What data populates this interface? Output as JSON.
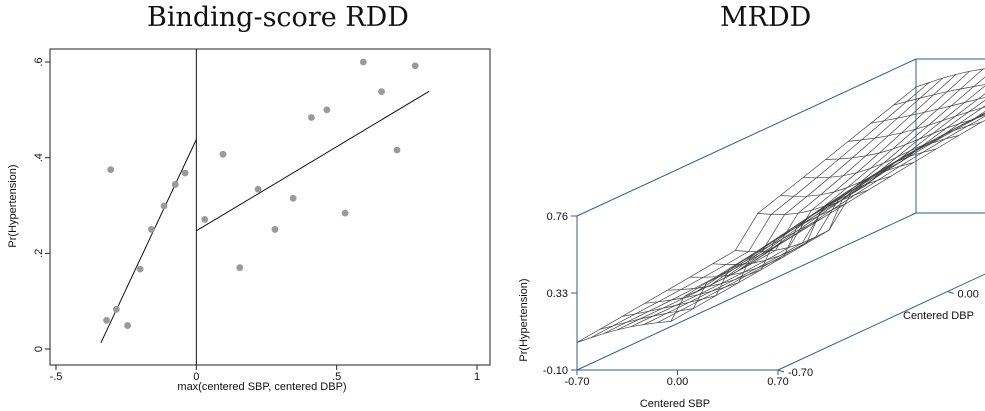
{
  "chart_data": [
    {
      "type": "scatter",
      "title": "Binding-score RDD",
      "xlabel": "max(centered SBP, centered DBP)",
      "ylabel": "Pr(Hypertension)",
      "xlim": [
        -0.5,
        1.0
      ],
      "ylim": [
        0,
        0.6
      ],
      "x_ticks": [
        -0.5,
        0,
        0.5,
        1
      ],
      "x_tick_labels": [
        "-.5",
        "0",
        ".5",
        "1"
      ],
      "y_ticks": [
        0,
        0.2,
        0.4,
        0.6
      ],
      "y_tick_labels": [
        "0",
        ".2",
        ".4",
        ".6"
      ],
      "cutoff": 0,
      "points": [
        {
          "x": -0.32,
          "y": 0.06
        },
        {
          "x": -0.285,
          "y": 0.083
        },
        {
          "x": -0.245,
          "y": 0.049
        },
        {
          "x": -0.2,
          "y": 0.167
        },
        {
          "x": -0.16,
          "y": 0.25
        },
        {
          "x": -0.115,
          "y": 0.299
        },
        {
          "x": -0.075,
          "y": 0.344
        },
        {
          "x": -0.04,
          "y": 0.368
        },
        {
          "x": -0.305,
          "y": 0.375
        },
        {
          "x": 0.03,
          "y": 0.271
        },
        {
          "x": 0.095,
          "y": 0.407
        },
        {
          "x": 0.155,
          "y": 0.17
        },
        {
          "x": 0.22,
          "y": 0.334
        },
        {
          "x": 0.28,
          "y": 0.25
        },
        {
          "x": 0.345,
          "y": 0.315
        },
        {
          "x": 0.41,
          "y": 0.484
        },
        {
          "x": 0.465,
          "y": 0.5
        },
        {
          "x": 0.53,
          "y": 0.284
        },
        {
          "x": 0.595,
          "y": 0.6
        },
        {
          "x": 0.66,
          "y": 0.538
        },
        {
          "x": 0.715,
          "y": 0.416
        },
        {
          "x": 0.78,
          "y": 0.592
        }
      ],
      "fit_lines": [
        {
          "x": [
            -0.34,
            0.0
          ],
          "y": [
            0.013,
            0.438
          ]
        },
        {
          "x": [
            0.0,
            0.83
          ],
          "y": [
            0.247,
            0.539
          ]
        }
      ]
    },
    {
      "type": "surface3d",
      "title": "MRDD",
      "xlabel": "Centered SBP",
      "ylabel": "Centered DBP",
      "zlabel": "Pr(Hypertension)",
      "x_tick_labels": [
        "-0.70",
        "0.00",
        "0.70"
      ],
      "y_tick_labels": [
        "-0.70",
        "0.00",
        "0.70"
      ],
      "z_tick_labels": [
        "-0.10",
        "0.33",
        "0.76"
      ],
      "xlim": [
        -0.7,
        0.7
      ],
      "ylim": [
        -0.7,
        0.7
      ],
      "zlim": [
        -0.1,
        0.76
      ]
    }
  ]
}
